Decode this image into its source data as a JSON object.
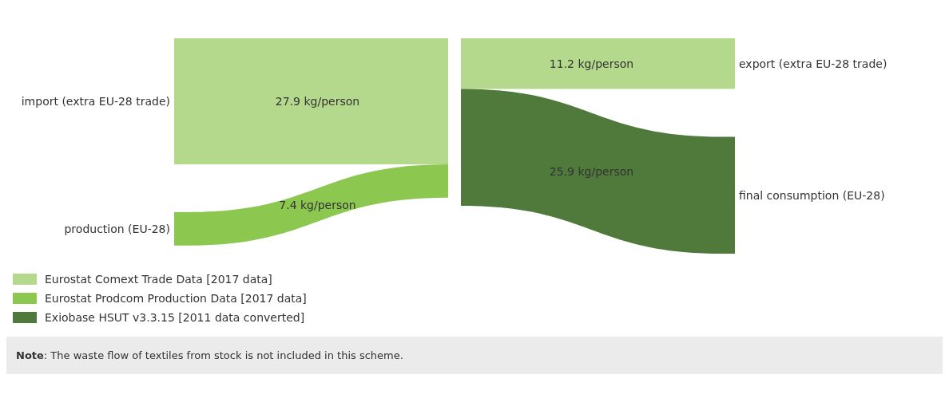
{
  "chart_data": {
    "type": "other",
    "categories": [
      "import (extra EU-28 trade)",
      "production (EU-28)",
      "export (extra EU-28 trade)",
      "final consumption (EU-28)"
    ],
    "series": [
      {
        "name": "Eurostat Comext Trade Data [2017 data]",
        "color": "#b5d98c",
        "values": [
          27.9,
          null,
          11.2,
          null
        ],
        "value_labels": [
          "27.9 kg/person",
          null,
          "11.2 kg/person",
          null
        ]
      },
      {
        "name": "Eurostat Prodcom Production Data [2017 data]",
        "color": "#8cc850",
        "values": [
          null,
          7.4,
          null,
          null
        ],
        "value_labels": [
          null,
          "7.4 kg/person",
          null,
          null
        ]
      },
      {
        "name": "Exiobase HSUT v3.3.15 [2011 data converted]",
        "color": "#4f7a3c",
        "values": [
          null,
          null,
          null,
          25.9
        ],
        "value_labels": [
          null,
          null,
          null,
          "25.9 kg/person"
        ]
      }
    ],
    "legend": "bottom left",
    "annotations": [
      "Note: The waste flow of textiles from stock is not included in this scheme."
    ]
  }
}
